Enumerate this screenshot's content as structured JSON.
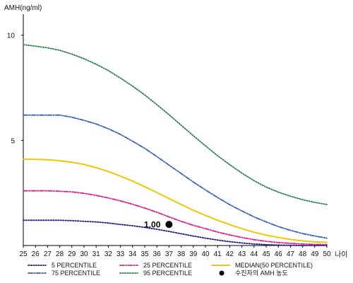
{
  "chart_data": {
    "type": "line",
    "ylabel": "AMH(ng/ml)",
    "xlabel": "나이",
    "xlim": [
      25,
      50
    ],
    "ylim": [
      0,
      11
    ],
    "x": [
      25,
      26,
      27,
      28,
      29,
      30,
      31,
      32,
      33,
      34,
      35,
      36,
      37,
      38,
      39,
      40,
      41,
      42,
      43,
      44,
      45,
      46,
      47,
      48,
      49,
      50
    ],
    "x_ticks": [
      "25",
      "26",
      "27",
      "28",
      "29",
      "30",
      "31",
      "32",
      "33",
      "34",
      "35",
      "36",
      "37",
      "38",
      "39",
      "40",
      "41",
      "42",
      "43",
      "44",
      "45",
      "46",
      "47",
      "48",
      "49",
      "50"
    ],
    "y_ticks": [
      {
        "value": 5,
        "label": "5"
      },
      {
        "value": 10,
        "label": "10"
      }
    ],
    "series": [
      {
        "name": "5 PERCENTILE",
        "color": "#1a1a80",
        "dash": "dotted",
        "values": [
          1.2,
          1.2,
          1.2,
          1.2,
          1.18,
          1.15,
          1.12,
          1.07,
          1.0,
          0.94,
          0.86,
          0.77,
          0.67,
          0.56,
          0.45,
          0.35,
          0.26,
          0.18,
          0.12,
          0.07,
          0.04,
          0.02,
          0.01,
          0.0,
          0.0,
          0.0
        ]
      },
      {
        "name": "25 PERCENTILE",
        "color": "#e0208a",
        "dash": "dashdot",
        "values": [
          2.6,
          2.6,
          2.6,
          2.58,
          2.55,
          2.48,
          2.38,
          2.26,
          2.12,
          1.96,
          1.78,
          1.58,
          1.36,
          1.15,
          0.96,
          0.8,
          0.64,
          0.5,
          0.38,
          0.28,
          0.2,
          0.14,
          0.1,
          0.07,
          0.05,
          0.04
        ]
      },
      {
        "name": "MEDIAN(50 PERCENTILE)",
        "color": "#f2c600",
        "dash": "solid",
        "values": [
          4.1,
          4.1,
          4.08,
          4.03,
          3.96,
          3.85,
          3.7,
          3.52,
          3.3,
          3.06,
          2.8,
          2.52,
          2.23,
          1.95,
          1.68,
          1.43,
          1.2,
          0.99,
          0.8,
          0.63,
          0.49,
          0.38,
          0.29,
          0.22,
          0.17,
          0.15
        ]
      },
      {
        "name": "75 PERCENTILE",
        "color": "#3a5fc0",
        "dash": "dashdot",
        "values": [
          6.2,
          6.2,
          6.2,
          6.2,
          6.1,
          5.95,
          5.78,
          5.55,
          5.28,
          4.96,
          4.62,
          4.23,
          3.82,
          3.42,
          3.02,
          2.64,
          2.28,
          1.94,
          1.64,
          1.36,
          1.12,
          0.9,
          0.72,
          0.57,
          0.45,
          0.35
        ]
      },
      {
        "name": "95 PERCENTILE",
        "color": "#2e8050",
        "dash": "dotted",
        "values": [
          9.55,
          9.48,
          9.4,
          9.28,
          9.1,
          8.88,
          8.62,
          8.32,
          7.96,
          7.58,
          7.16,
          6.7,
          6.22,
          5.72,
          5.22,
          4.74,
          4.27,
          3.84,
          3.44,
          3.08,
          2.78,
          2.54,
          2.34,
          2.18,
          2.05,
          1.95
        ]
      }
    ],
    "point": {
      "label": "수진자의 AMH 농도",
      "x": 37,
      "y": 1.0,
      "value_label": "1.00"
    },
    "legend_order": [
      "5 PERCENTILE",
      "25 PERCENTILE",
      "MEDIAN(50 PERCENTILE)",
      "75 PERCENTILE",
      "95 PERCENTILE",
      "수진자의 AMH 농도"
    ],
    "legend_position": "bottom",
    "grid": false
  }
}
